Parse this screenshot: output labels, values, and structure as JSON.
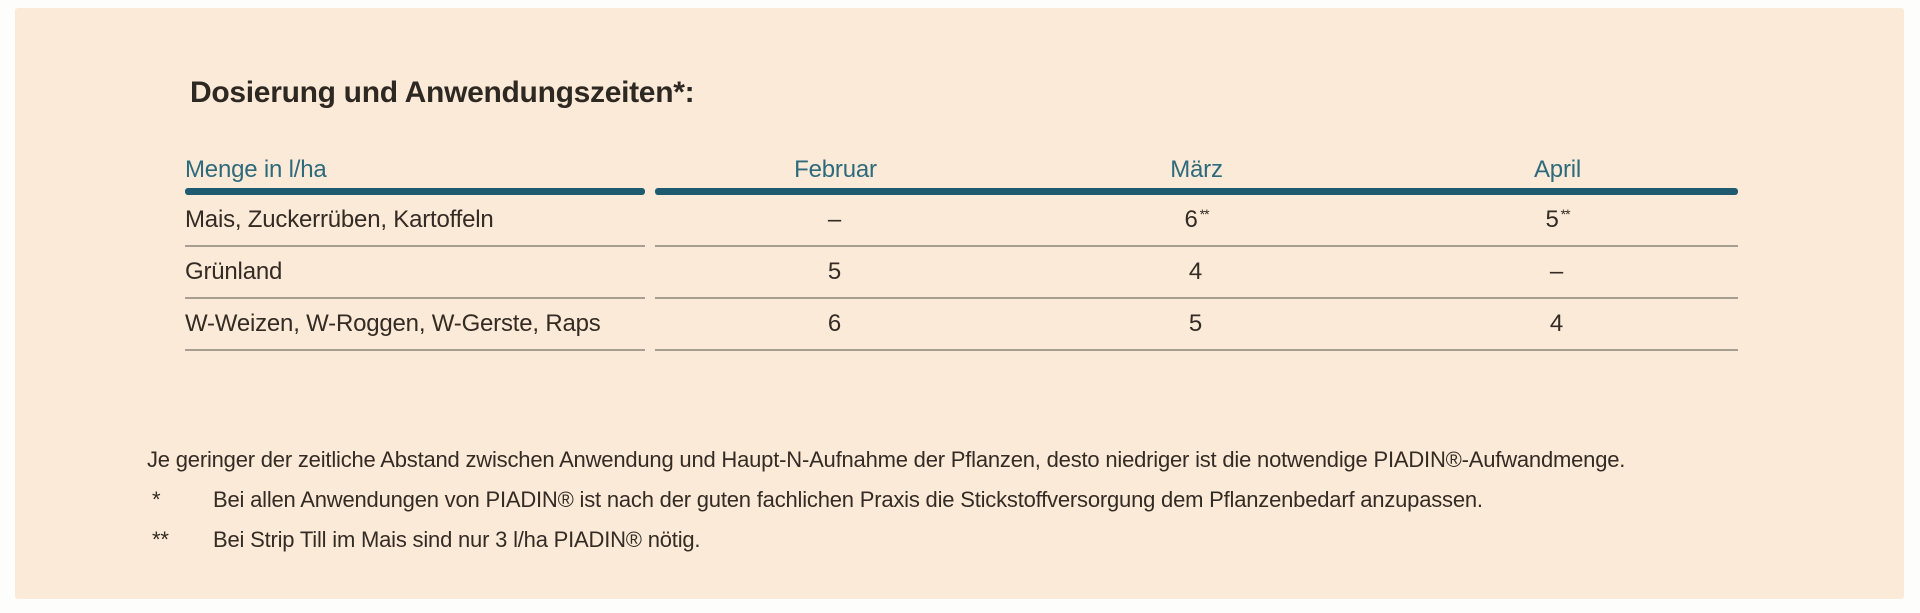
{
  "title": "Dosierung und Anwendungszeiten*:",
  "colors": {
    "panel_background": "#fcead8",
    "accent_teal": "#1f5b70",
    "header_text": "#2d6a7c",
    "body_text": "#332b24",
    "separator_line": "#a69e90"
  },
  "table": {
    "header": {
      "label": "Menge in l/ha",
      "months": [
        "Februar",
        "März",
        "April"
      ]
    },
    "rows": [
      {
        "label": "Mais, Zuckerrüben, Kartoffeln",
        "cells": [
          {
            "text": "–",
            "sup": ""
          },
          {
            "text": "6",
            "sup": "**"
          },
          {
            "text": "5",
            "sup": "**"
          }
        ]
      },
      {
        "label": "Grünland",
        "cells": [
          {
            "text": "5",
            "sup": ""
          },
          {
            "text": "4",
            "sup": ""
          },
          {
            "text": "–",
            "sup": ""
          }
        ]
      },
      {
        "label": "W-Weizen, W-Roggen, W-Gerste, Raps",
        "cells": [
          {
            "text": "6",
            "sup": ""
          },
          {
            "text": "5",
            "sup": ""
          },
          {
            "text": "4",
            "sup": ""
          }
        ]
      }
    ]
  },
  "notes": [
    {
      "marker": "",
      "text": "Je geringer der zeitliche Abstand zwischen Anwendung und Haupt-N-Aufnahme der Pflanzen, desto niedriger ist die notwendige PIADIN®-Aufwandmenge."
    },
    {
      "marker": "*",
      "text": "Bei allen Anwendungen von PIADIN® ist nach der guten fachlichen Praxis die Stickstoffversorgung dem Pflanzenbedarf anzupassen."
    },
    {
      "marker": "**",
      "text": "Bei Strip Till im Mais sind nur 3 l/ha PIADIN® nötig."
    }
  ]
}
